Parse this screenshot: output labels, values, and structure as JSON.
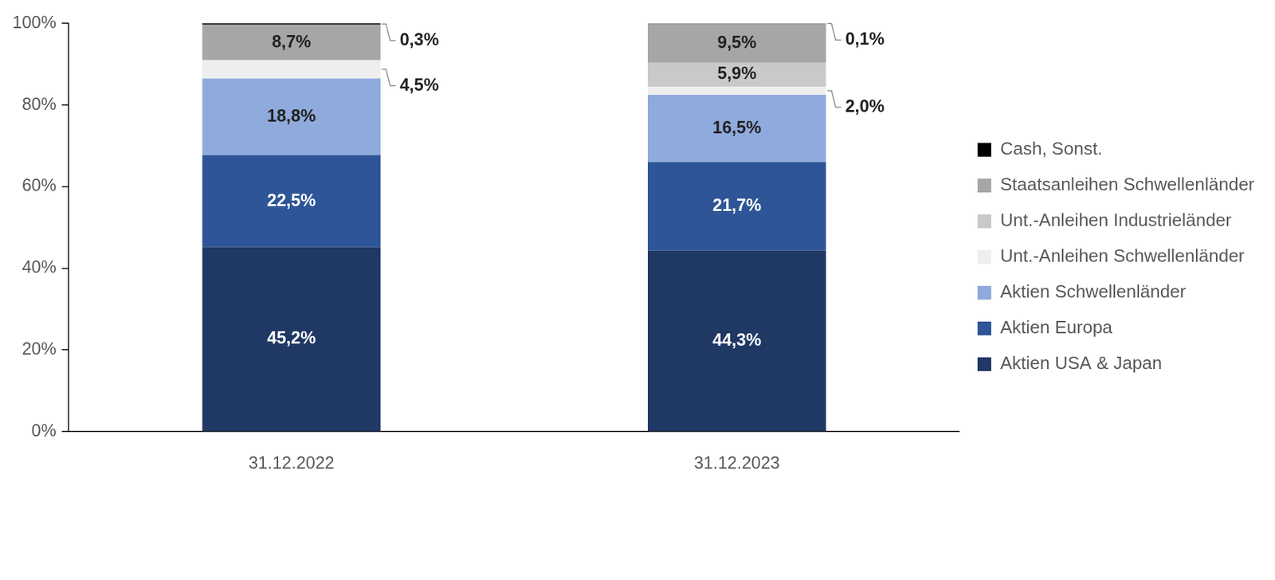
{
  "chart_data": {
    "type": "bar",
    "stacked": true,
    "grid": false,
    "legend": "right",
    "data_labels": true,
    "categories": [
      "31.12.2022",
      "31.12.2023"
    ],
    "series": [
      {
        "name": "Aktien USA & Japan",
        "color": "#203864",
        "values": [
          45.2,
          44.3
        ],
        "value_labels": [
          "45,2%",
          "44,3%"
        ]
      },
      {
        "name": "Aktien Europa",
        "color": "#2e5597",
        "values": [
          22.5,
          21.7
        ],
        "value_labels": [
          "22,5%",
          "21,7%"
        ]
      },
      {
        "name": "Aktien Schwellenländer",
        "color": "#8faadc",
        "values": [
          18.8,
          16.5
        ],
        "value_labels": [
          "18,8%",
          "16,5%"
        ]
      },
      {
        "name": "Unt.-Anleihen Schwellenländer",
        "color": "#eeeeee",
        "values": [
          4.5,
          2.0
        ],
        "value_labels": [
          "4,5%",
          "2,0%"
        ]
      },
      {
        "name": "Unt.-Anleihen Industrieländer",
        "color": "#c9c9c9",
        "values": [
          null,
          5.9
        ],
        "value_labels": [
          null,
          "5,9%"
        ]
      },
      {
        "name": "Staatsanleihen Schwellenländer",
        "color": "#a6a6a6",
        "values": [
          8.7,
          9.5
        ],
        "value_labels": [
          "8,7%",
          "9,5%"
        ]
      },
      {
        "name": "Cash, Sonst.",
        "color": "#000000",
        "values": [
          0.3,
          0.1
        ],
        "value_labels": [
          "0,3%",
          "0,1%"
        ]
      }
    ],
    "ylim": [
      0,
      100
    ],
    "yticks": [
      {
        "value": 0,
        "label": "0%"
      },
      {
        "value": 20,
        "label": "20%"
      },
      {
        "value": 40,
        "label": "40%"
      },
      {
        "value": 60,
        "label": "60%"
      },
      {
        "value": 80,
        "label": "80%"
      },
      {
        "value": 100,
        "label": "100%"
      }
    ]
  }
}
